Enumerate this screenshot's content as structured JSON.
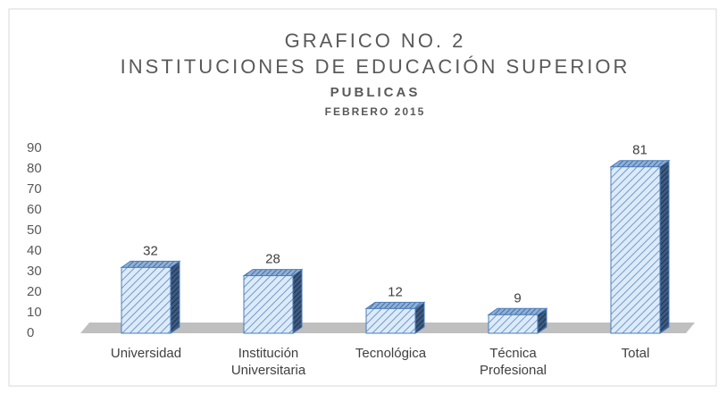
{
  "chart_data": {
    "type": "bar3d",
    "title": "GRAFICO NO. 2",
    "subtitles": [
      "INSTITUCIONES DE EDUCACIÓN SUPERIOR",
      "PUBLICAS",
      "FEBRERO 2015"
    ],
    "categories": [
      "Universidad",
      "Institución Universitaria",
      "Tecnológica",
      "Técnica Profesional",
      "Total"
    ],
    "values": [
      32,
      28,
      12,
      9,
      81
    ],
    "color": "#4a7ebb",
    "ylim": [
      0,
      90
    ],
    "yticks": [
      0,
      10,
      20,
      30,
      40,
      50,
      60,
      70,
      80,
      90
    ],
    "grid": false
  }
}
